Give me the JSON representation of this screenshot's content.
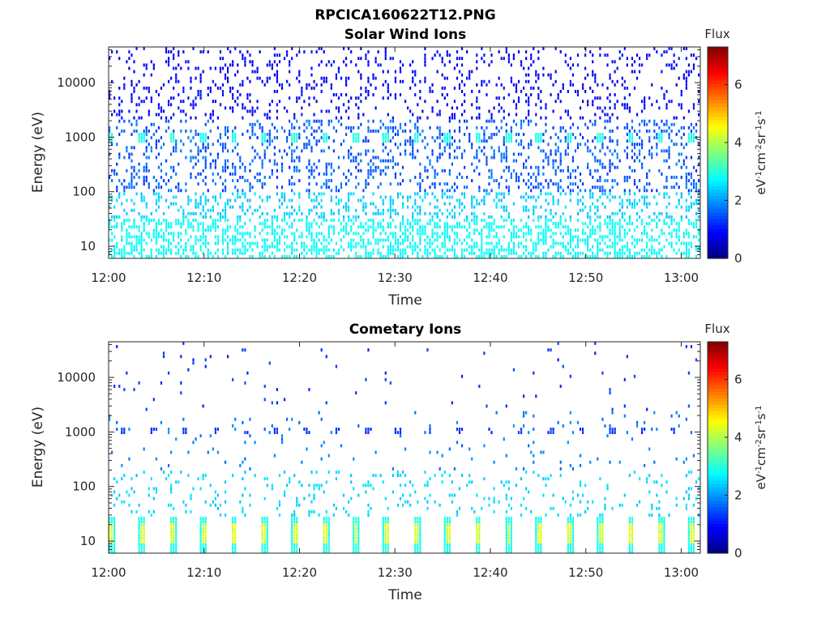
{
  "figure": {
    "title": "RPCICA160622T12.PNG"
  },
  "chart_data": [
    {
      "type": "heatmap",
      "title": "Solar Wind Ions",
      "xlabel": "Time",
      "ylabel": "Energy (eV)",
      "y_scale": "log",
      "xlim": [
        "12:00",
        "13:02"
      ],
      "ylim": [
        6,
        45000
      ],
      "x_ticks": [
        "12:00",
        "12:10",
        "12:20",
        "12:30",
        "12:40",
        "12:50",
        "13:00"
      ],
      "y_ticks": [
        "10",
        "100",
        "1000",
        "10000"
      ],
      "y_tick_values": [
        10,
        100,
        1000,
        10000
      ],
      "colorbar": {
        "title": "Flux",
        "label": "eV-1cm-2sr-1s-1",
        "ticks": [
          "0",
          "2",
          "4",
          "6"
        ],
        "tick_values": [
          0,
          2,
          4,
          6
        ],
        "range": [
          0,
          7.3
        ]
      },
      "colormap": "jet",
      "sweep_period_min": 3.2,
      "features": [
        {
          "name": "solar wind peak",
          "energy_eV": 1000,
          "flux": 2.7
        },
        {
          "name": "scattered high-energy counts",
          "energy_range_eV": [
            2000,
            40000
          ],
          "flux": 1.0
        },
        {
          "name": "low-energy background",
          "energy_range_eV": [
            6,
            30
          ],
          "flux": 2.7
        }
      ]
    },
    {
      "type": "heatmap",
      "title": "Cometary Ions",
      "xlabel": "Time",
      "ylabel": "Energy (eV)",
      "y_scale": "log",
      "xlim": [
        "12:00",
        "13:02"
      ],
      "ylim": [
        6,
        45000
      ],
      "x_ticks": [
        "12:00",
        "12:10",
        "12:20",
        "12:30",
        "12:40",
        "12:50",
        "13:00"
      ],
      "y_ticks": [
        "10",
        "100",
        "1000",
        "10000"
      ],
      "y_tick_values": [
        10,
        100,
        1000,
        10000
      ],
      "colorbar": {
        "title": "Flux",
        "label": "eV-1cm-2sr-1s-1",
        "ticks": [
          "0",
          "2",
          "4",
          "6"
        ],
        "tick_values": [
          0,
          2,
          4,
          6
        ],
        "range": [
          0,
          7.3
        ]
      },
      "colormap": "jet",
      "sweep_period_min": 3.2,
      "features": [
        {
          "name": "low-energy cometary ions",
          "energy_range_eV": [
            8,
            28
          ],
          "flux": 4.3
        },
        {
          "name": "ion band",
          "energy_eV": 1000,
          "flux": 1.2
        },
        {
          "name": "sparse counts",
          "energy_range_eV": [
            30,
            30000
          ],
          "flux": 1.5
        }
      ]
    }
  ]
}
